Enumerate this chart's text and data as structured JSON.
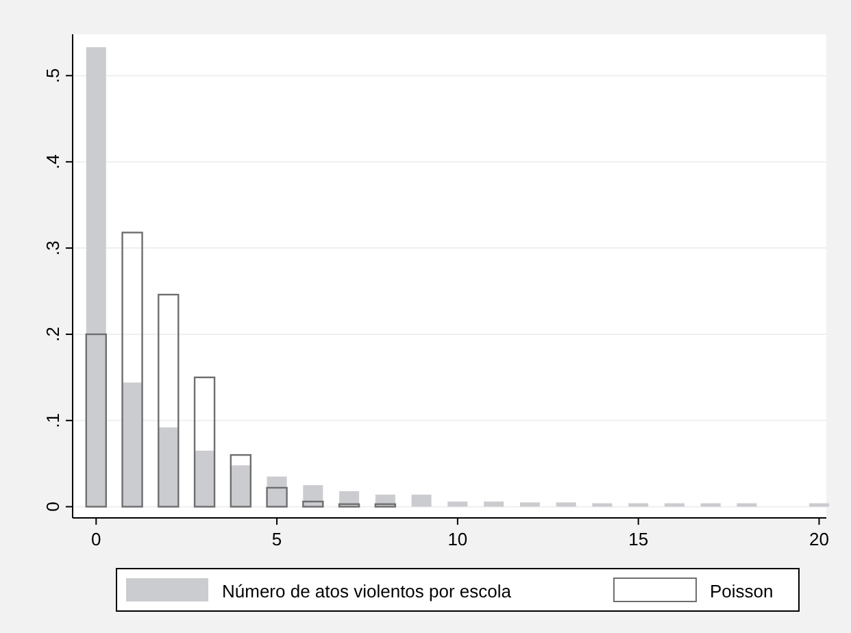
{
  "chart_data": {
    "type": "bar",
    "series": [
      {
        "name": "Número de atos violentos por escola",
        "color": "#cbcccf",
        "x": [
          0,
          1,
          2,
          3,
          4,
          5,
          6,
          7,
          8,
          9,
          10,
          11,
          12,
          13,
          14,
          15,
          16,
          17,
          18,
          20
        ],
        "values": [
          0.533,
          0.144,
          0.092,
          0.065,
          0.048,
          0.035,
          0.025,
          0.018,
          0.014,
          0.014,
          0.006,
          0.006,
          0.005,
          0.005,
          0.004,
          0.004,
          0.004,
          0.004,
          0.004,
          0.004
        ]
      },
      {
        "name": "Poisson",
        "color": "#6e6e70",
        "x": [
          0,
          1,
          2,
          3,
          4,
          5,
          6,
          7,
          8
        ],
        "values": [
          0.2,
          0.318,
          0.246,
          0.15,
          0.06,
          0.022,
          0.006,
          0.003,
          0.003
        ]
      }
    ],
    "xlim": [
      -0.65,
      20.2
    ],
    "xticks": [
      0,
      5,
      10,
      15,
      20
    ],
    "ylim": [
      -0.013,
      0.548
    ],
    "yticks": [
      {
        "value": 0,
        "label": "0"
      },
      {
        "value": 0.1,
        "label": ".1"
      },
      {
        "value": 0.2,
        "label": ".2"
      },
      {
        "value": 0.3,
        "label": ".3"
      },
      {
        "value": 0.4,
        "label": ".4"
      },
      {
        "value": 0.5,
        "label": ".5"
      }
    ],
    "grid": "y",
    "legend": "bottom"
  }
}
